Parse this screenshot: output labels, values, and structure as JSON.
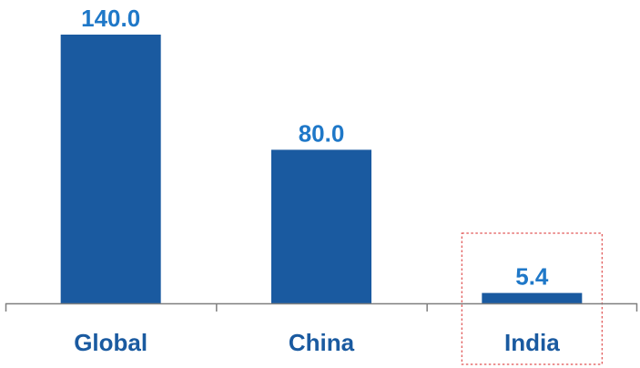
{
  "chart_data": {
    "type": "bar",
    "categories": [
      "Global",
      "China",
      "India"
    ],
    "values": [
      140.0,
      80.0,
      5.4
    ],
    "data_labels": [
      "140.0",
      "80.0",
      "5.4"
    ],
    "title": "",
    "xlabel": "",
    "ylabel": "",
    "ylim": [
      0,
      140
    ],
    "grid": false,
    "highlighted_category": "India",
    "colors": {
      "bar": "#1a5aa0",
      "value_label": "#1f78c8",
      "tick_label": "#1a5aa0",
      "axis": "#7f7f7f",
      "highlight_box": "#e05050"
    }
  }
}
